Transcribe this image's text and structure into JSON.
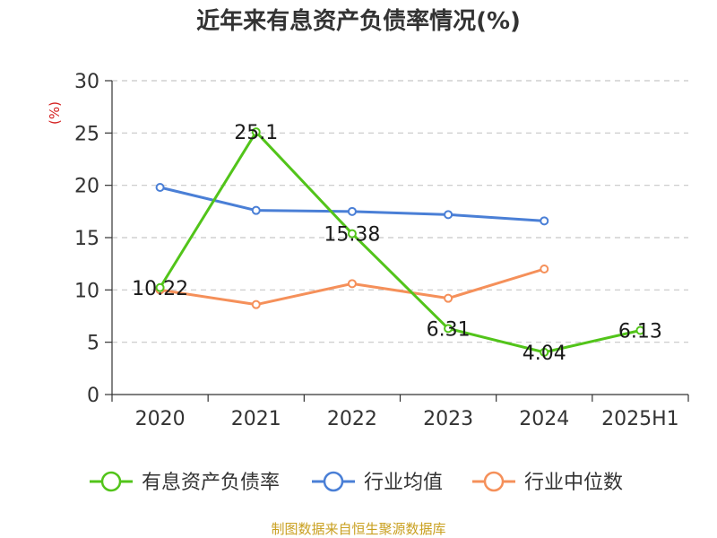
{
  "chart_data": {
    "type": "line",
    "title": "近年来有息资产负债率情况(%)",
    "ylabel": "(%)",
    "categories": [
      "2020",
      "2021",
      "2022",
      "2023",
      "2024",
      "2025H1"
    ],
    "ylim": [
      0,
      30
    ],
    "yticks": [
      0,
      5,
      10,
      15,
      20,
      25,
      30
    ],
    "grid": true,
    "legend_position": "bottom",
    "series": [
      {
        "name": "有息资产负债率",
        "color": "#52c41a",
        "values": [
          10.22,
          25.1,
          15.38,
          6.31,
          4.04,
          6.13
        ],
        "labels": [
          "10.22",
          "25.1",
          "15.38",
          "6.31",
          "4.04",
          "6.13"
        ]
      },
      {
        "name": "行业均值",
        "color": "#4a7fd6",
        "values": [
          19.8,
          17.6,
          17.5,
          17.2,
          16.6,
          null
        ]
      },
      {
        "name": "行业中位数",
        "color": "#f5905a",
        "values": [
          10.0,
          8.6,
          10.6,
          9.2,
          12.0,
          null
        ]
      }
    ]
  },
  "source": "制图数据来自恒生聚源数据库"
}
